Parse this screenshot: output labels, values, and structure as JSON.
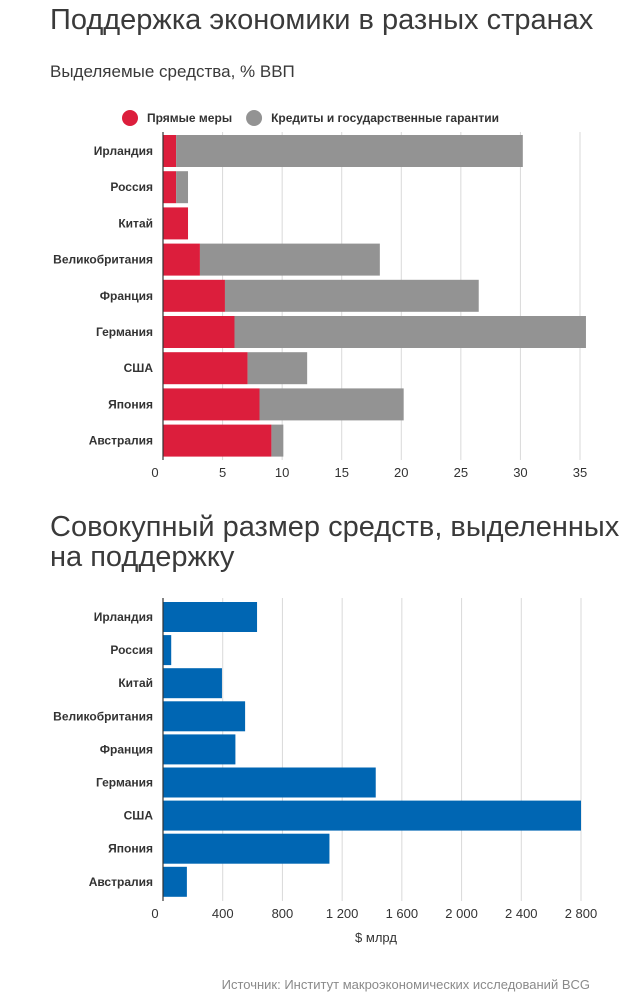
{
  "chart_data": [
    {
      "type": "bar",
      "orientation": "horizontal",
      "stacked": true,
      "title": "Поддержка экономики в разных странах",
      "subtitle": "Выделяемые средства, % ВВП",
      "categories": [
        "Ирландия",
        "Россия",
        "Китай",
        "Великобритания",
        "Франция",
        "Германия",
        "США",
        "Япония",
        "Австралия"
      ],
      "series": [
        {
          "name": "Прямые меры",
          "color": "#dc1e3c",
          "values": [
            1.1,
            1.1,
            2.1,
            3.1,
            5.2,
            6.0,
            7.1,
            8.1,
            9.1
          ]
        },
        {
          "name": "Кредиты и государственные гарантии",
          "color": "#939393",
          "values": [
            29.1,
            1.0,
            0,
            15.1,
            21.3,
            29.5,
            5.0,
            12.1,
            1.0
          ]
        }
      ],
      "xlim": [
        0,
        35
      ],
      "xticks": [
        "0",
        "5",
        "10",
        "15",
        "20",
        "25",
        "30",
        "35"
      ],
      "grid": true,
      "legend": "top"
    },
    {
      "type": "bar",
      "orientation": "horizontal",
      "title": "Совокупный размер средств, выделенных на поддержку",
      "categories": [
        "Ирландия",
        "Россия",
        "Китай",
        "Великобритания",
        "Франция",
        "Германия",
        "США",
        "Япония",
        "Австралия"
      ],
      "series": [
        {
          "color": "#0066b3",
          "values": [
            630,
            55,
            395,
            550,
            485,
            1425,
            2800,
            1115,
            160
          ]
        }
      ],
      "xlim": [
        0,
        2800
      ],
      "xticks": [
        "0",
        "400",
        "800",
        "1 200",
        "1 600",
        "2 000",
        "2 400",
        "2 800"
      ],
      "xlabel": "$ млрд",
      "grid": true
    }
  ],
  "source": "Источник: Институт макроэкономических исследований BCG"
}
